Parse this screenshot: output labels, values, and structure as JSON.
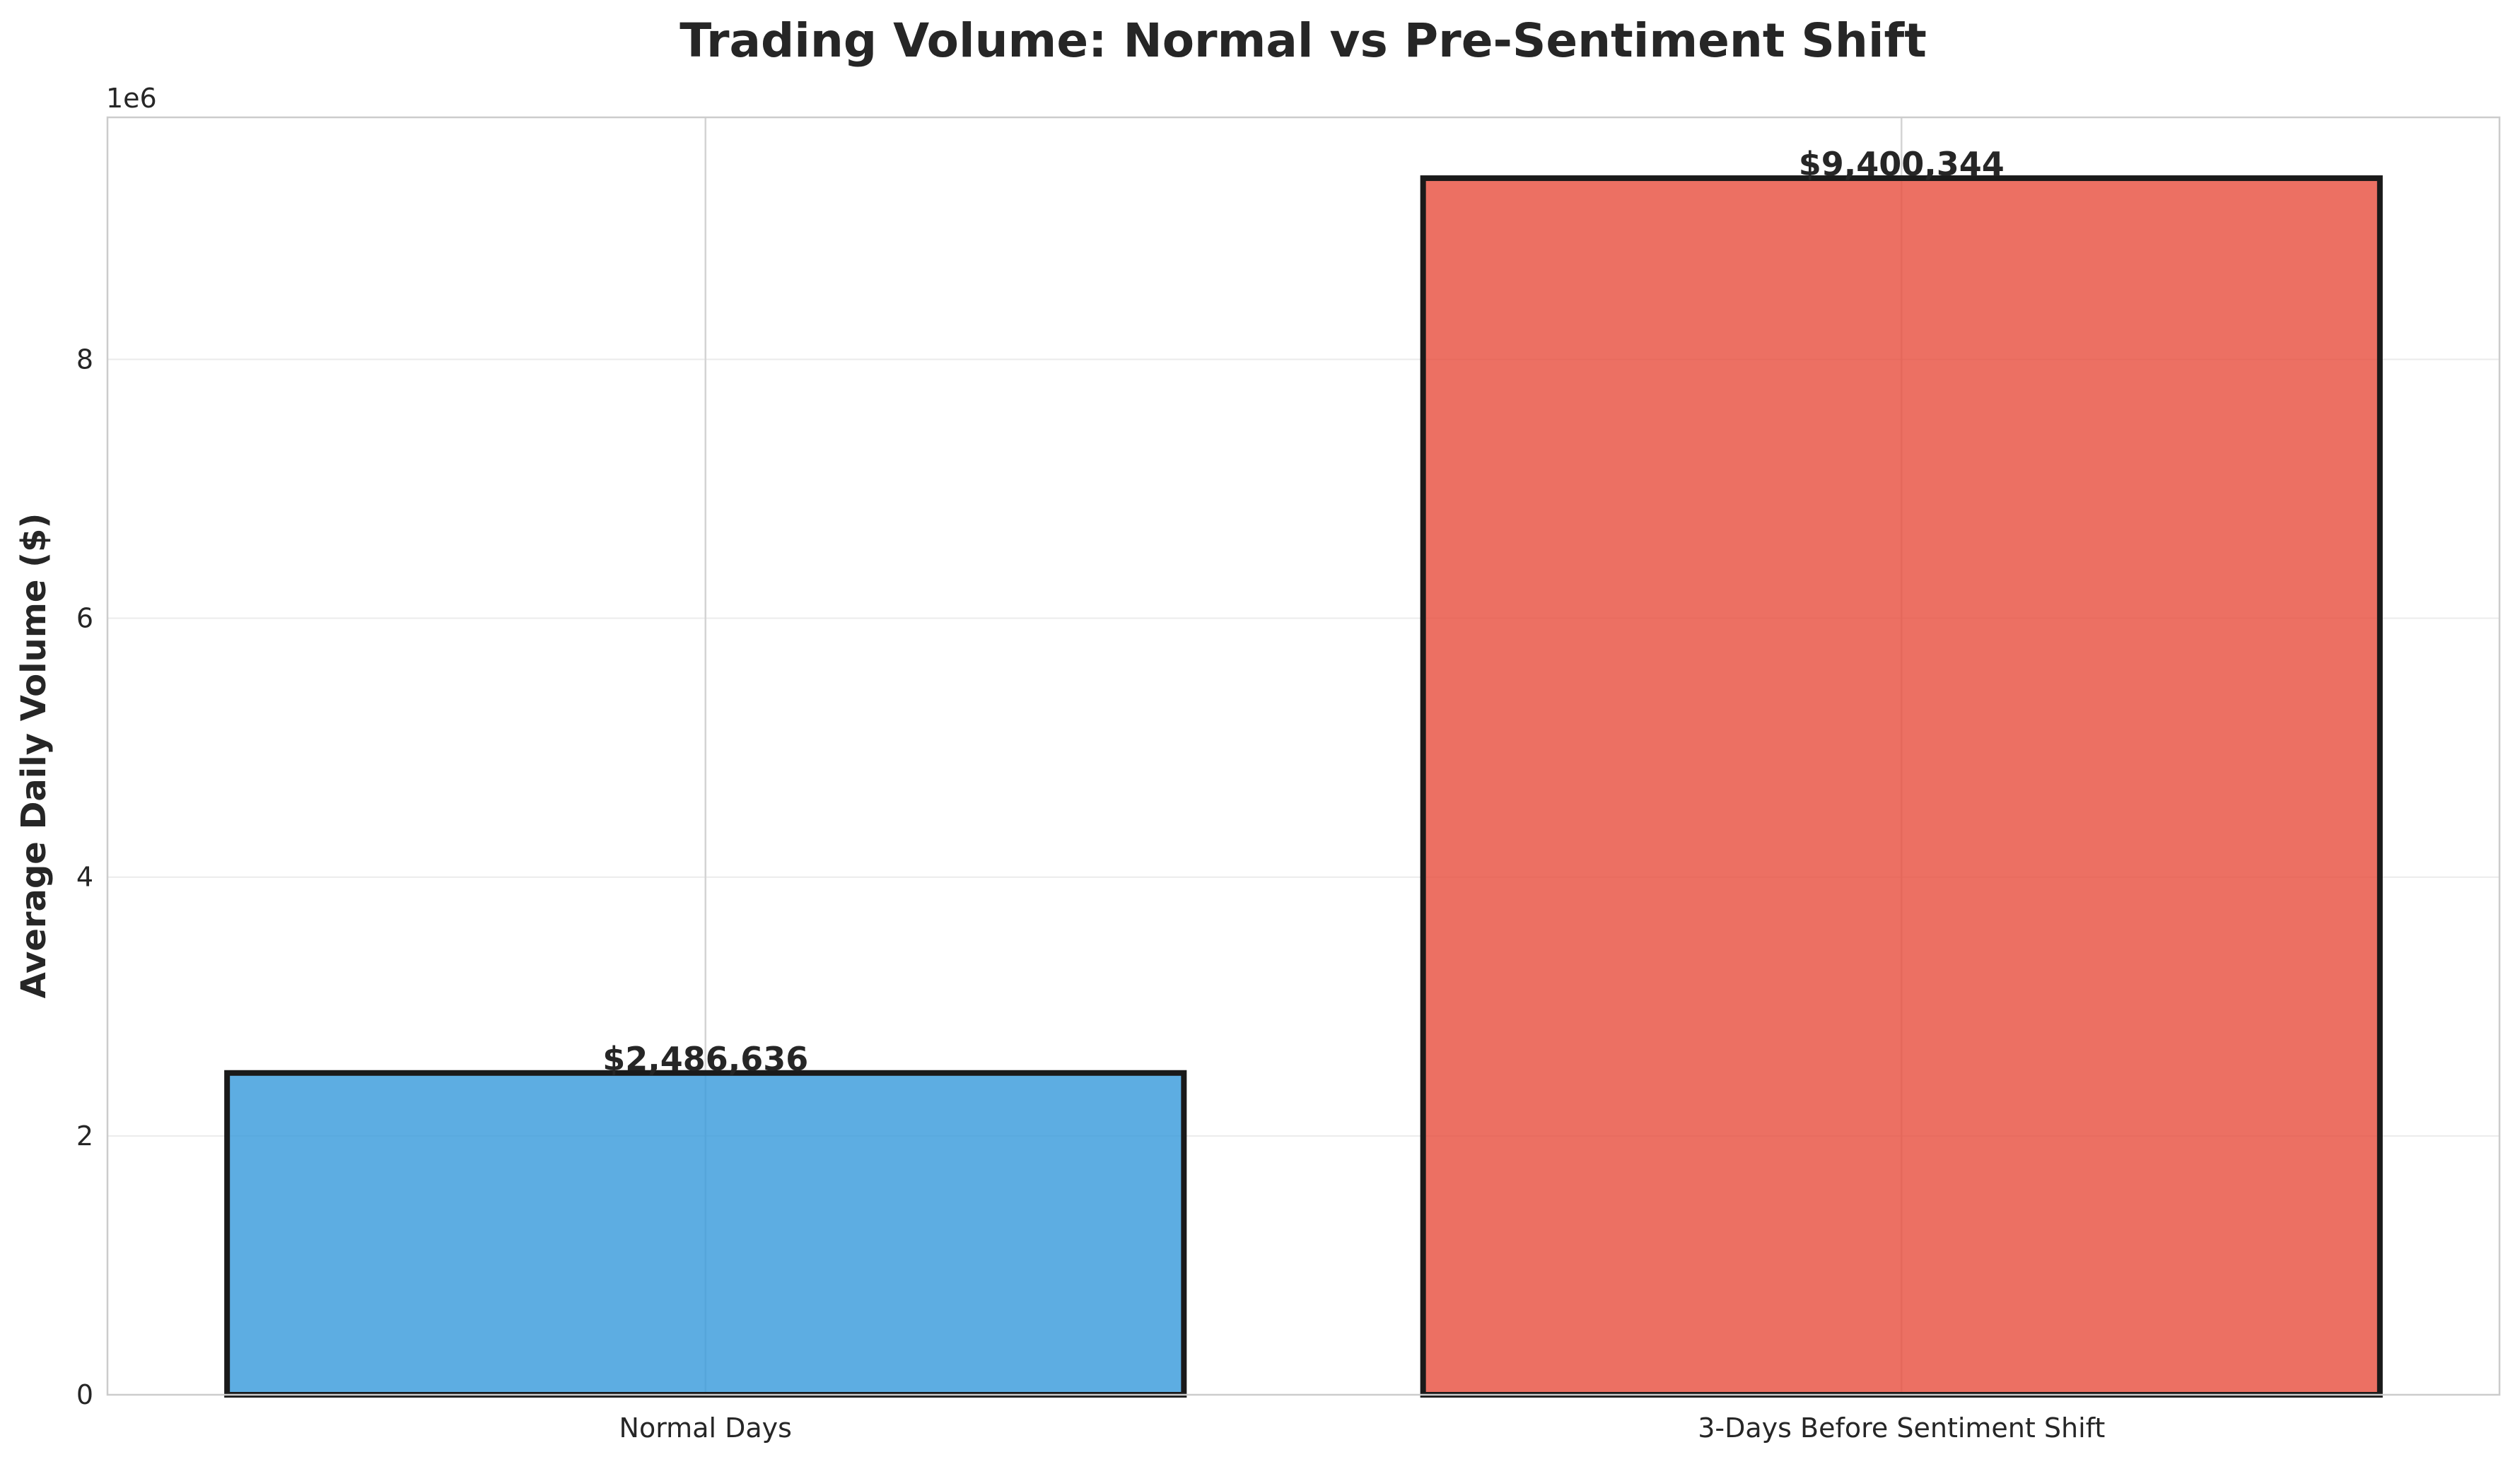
{
  "chart_data": {
    "type": "bar",
    "title": "Trading Volume: Normal vs Pre-Sentiment Shift",
    "xlabel": "",
    "ylabel": "Average Daily Volume ($)",
    "y_offset_label": "1e6",
    "categories": [
      "Normal Days",
      "3-Days Before Sentiment Shift"
    ],
    "values": [
      2486636,
      9400344
    ],
    "value_labels": [
      "$2,486,636",
      "$9,400,344"
    ],
    "colors": [
      "#3498db",
      "#e74c3c"
    ],
    "bar_edge_color": "#1a1a1a",
    "y_ticks": [
      0,
      2000000,
      4000000,
      6000000,
      8000000
    ],
    "y_tick_labels": [
      "0",
      "2",
      "4",
      "6",
      "8"
    ],
    "ylim": [
      0,
      9870361
    ],
    "grid": true
  }
}
